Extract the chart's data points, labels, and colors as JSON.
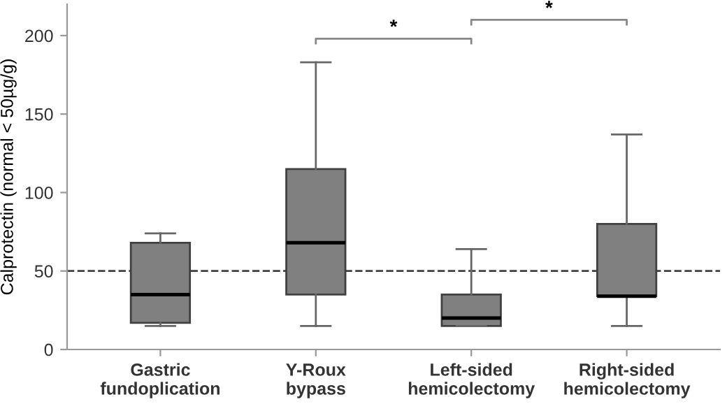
{
  "chart_data": {
    "type": "box",
    "ylabel": "Calprotectin (normal < 50µg/g)",
    "categories": [
      "Gastric\nfundoplication",
      "Y-Roux\nbypass",
      "Left-sided\nhemicolectomy",
      "Right-sided\nhemicolectomy"
    ],
    "boxes": [
      {
        "low": 15,
        "q1": 17,
        "median": 35,
        "q3": 68,
        "high": 74
      },
      {
        "low": 15,
        "q1": 35,
        "median": 68,
        "q3": 115,
        "high": 183
      },
      {
        "low": 15,
        "q1": 15,
        "median": 20,
        "q3": 35,
        "high": 64
      },
      {
        "low": 15,
        "q1": 34,
        "median": 34,
        "q3": 80,
        "high": 137
      }
    ],
    "color": "#808080",
    "ylim": [
      0,
      220
    ],
    "yticks": [
      0,
      50,
      100,
      150,
      200
    ],
    "ref_lines": [
      {
        "axis": "y",
        "value": 50,
        "color": "#404040",
        "line_style": "dashed"
      }
    ],
    "annotations": [
      "*",
      "*"
    ],
    "grid": false
  }
}
